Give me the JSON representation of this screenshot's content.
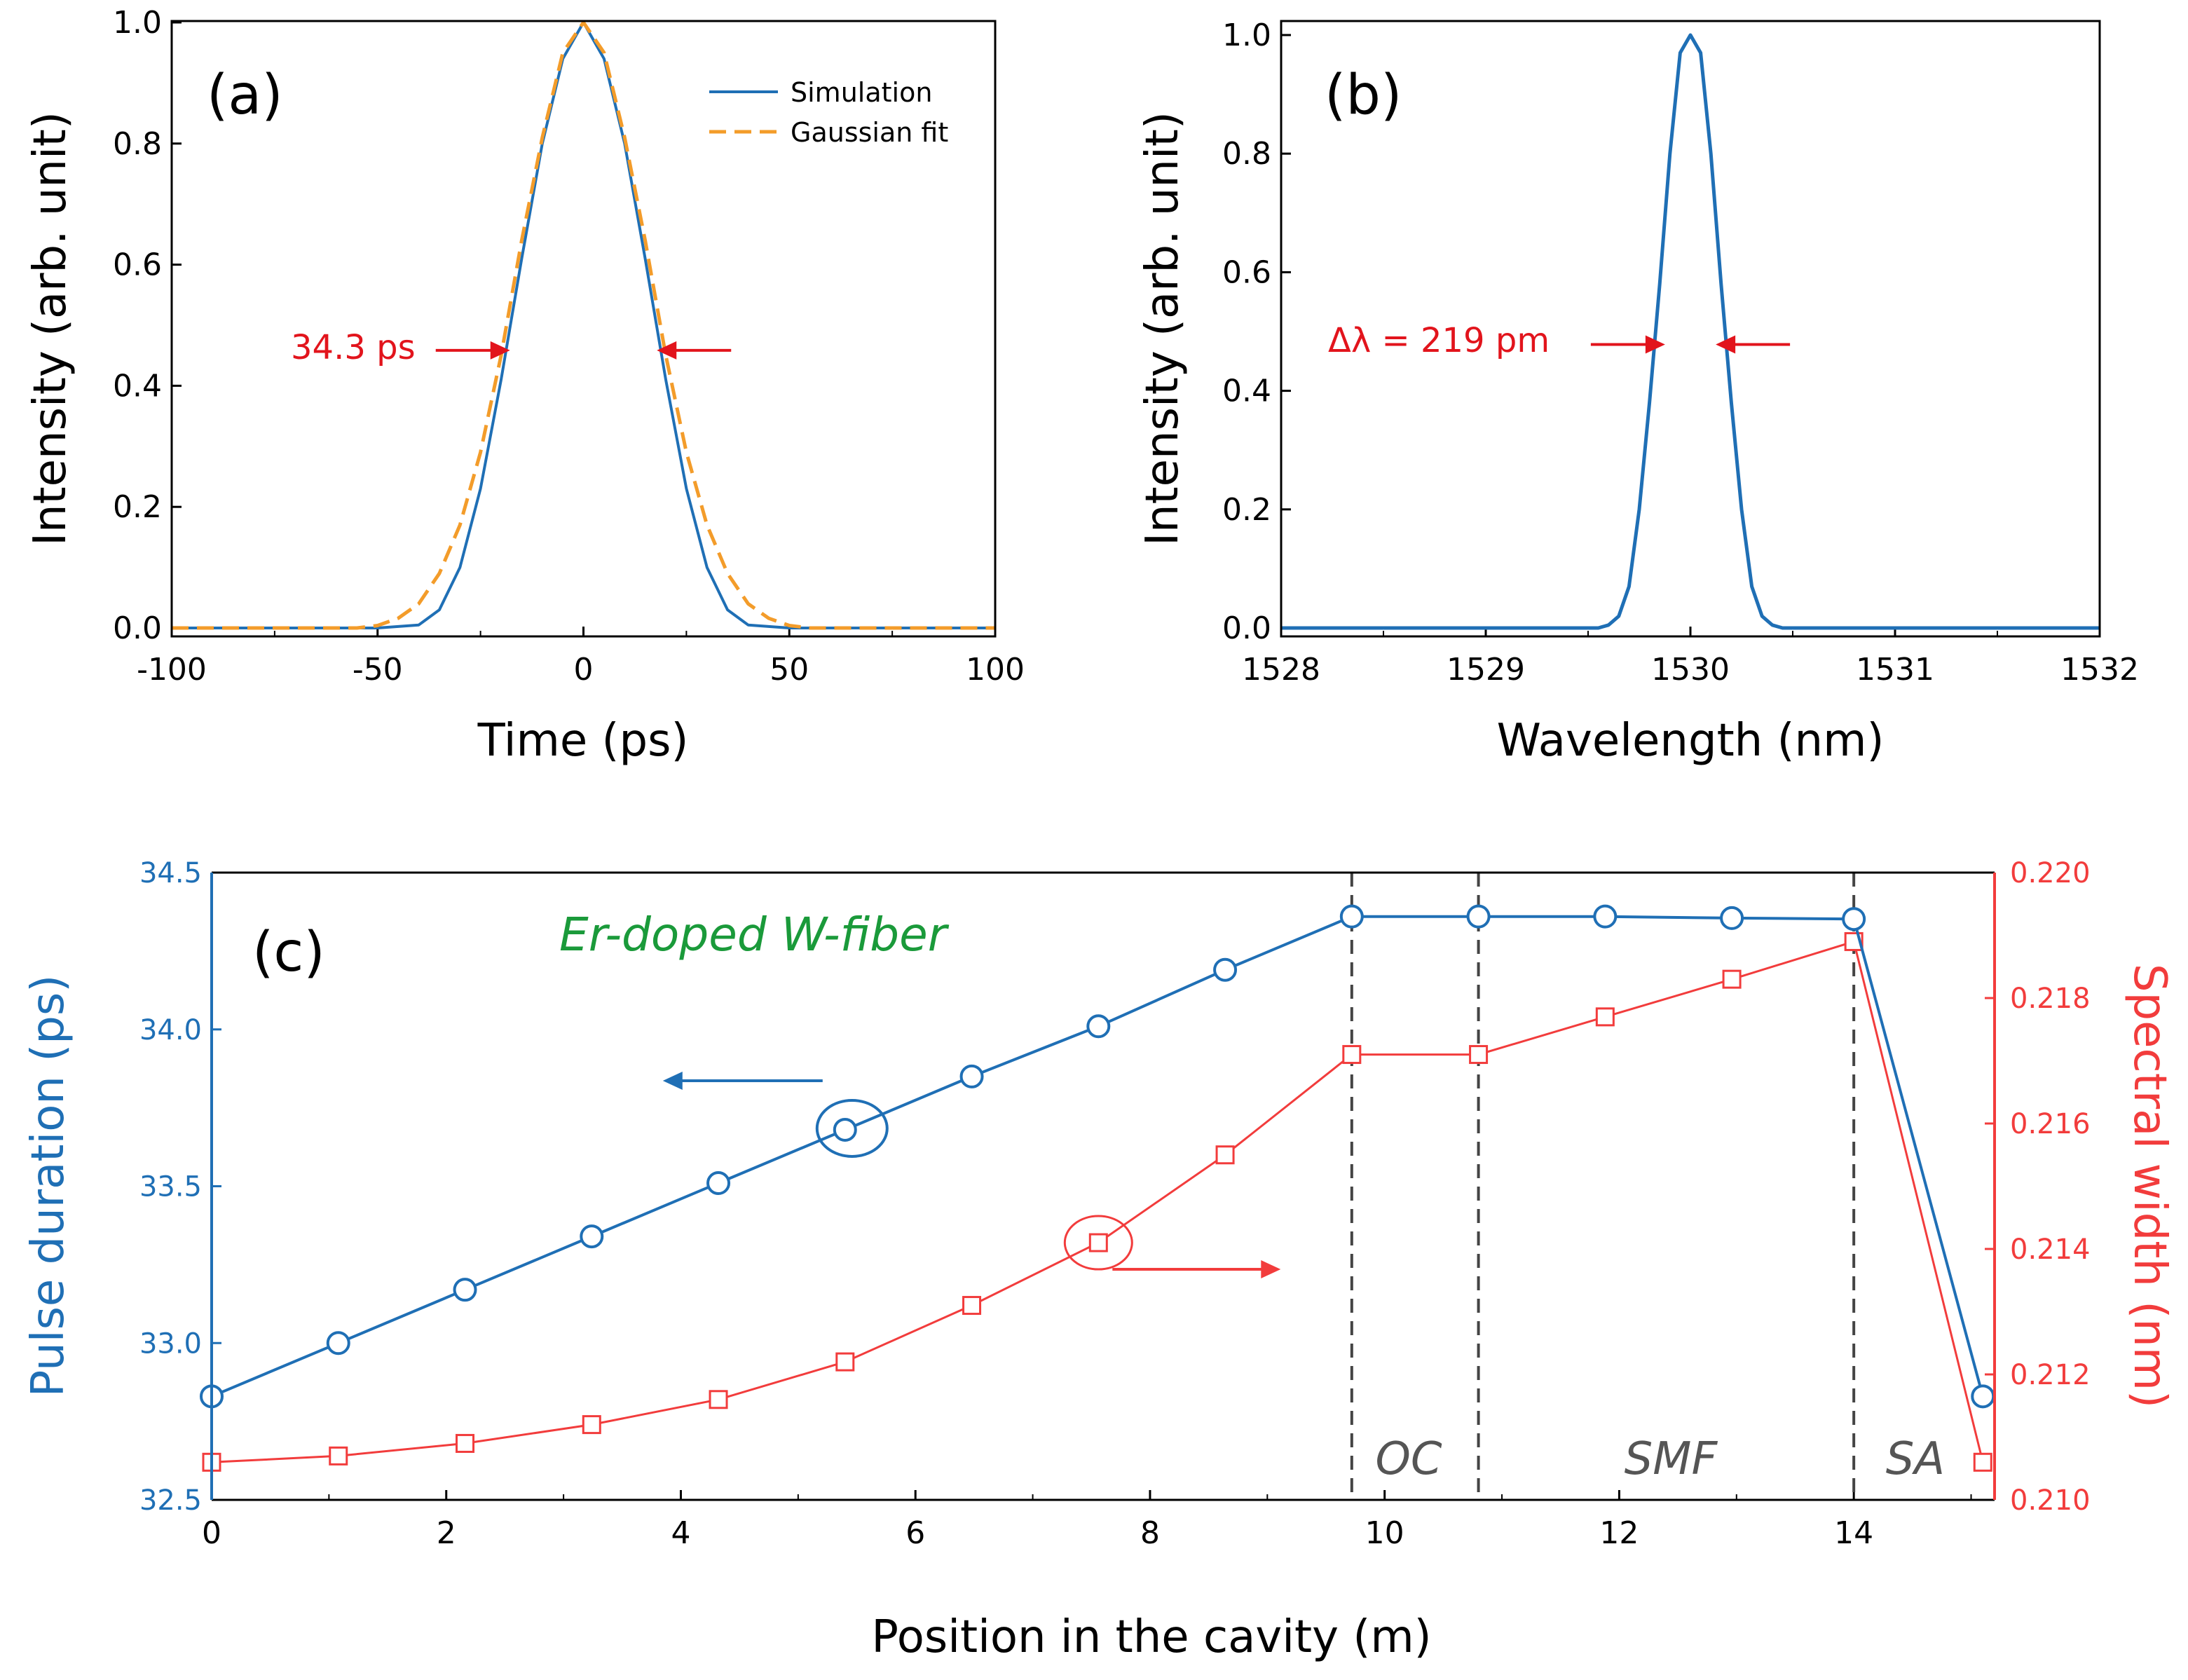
{
  "colors": {
    "simulation": "#1f6fb5",
    "gaussian_fit": "#f39c2a",
    "spectrum": "#1f6fb5",
    "duration": "#1f6fb5",
    "spectral_width": "#f23c3c",
    "annotation": "#e2141c",
    "fiber_label": "#1a9a3a",
    "region": "#555555"
  },
  "chart_data": [
    {
      "panel": "(a)",
      "type": "line",
      "xlabel": "Time (ps)",
      "ylabel": "Intensity (arb. unit)",
      "xlim": [
        -100,
        100
      ],
      "ylim": [
        0,
        1.0
      ],
      "xticks": [
        "-100",
        "-50",
        "0",
        "50",
        "100"
      ],
      "yticks": [
        "0.0",
        "0.2",
        "0.4",
        "0.6",
        "0.8",
        "1.0"
      ],
      "legend_position": "top-right",
      "series": [
        {
          "name": "Simulation",
          "style": "solid",
          "x": [
            -100,
            -50,
            -40,
            -35,
            -30,
            -25,
            -20,
            -15,
            -10,
            -5,
            0,
            5,
            10,
            15,
            20,
            25,
            30,
            35,
            40,
            50,
            100
          ],
          "y": [
            0,
            0,
            0.005,
            0.03,
            0.1,
            0.23,
            0.41,
            0.61,
            0.8,
            0.94,
            1.0,
            0.94,
            0.8,
            0.61,
            0.41,
            0.23,
            0.1,
            0.03,
            0.005,
            0,
            0
          ]
        },
        {
          "name": "Gaussian fit",
          "style": "dashed",
          "x": [
            -100,
            -55,
            -50,
            -45,
            -40,
            -35,
            -30,
            -25,
            -20,
            -15,
            -10,
            -5,
            0,
            5,
            10,
            15,
            20,
            25,
            30,
            35,
            40,
            45,
            50,
            55,
            100
          ],
          "y": [
            0,
            0,
            0.004,
            0.016,
            0.04,
            0.09,
            0.17,
            0.29,
            0.45,
            0.64,
            0.81,
            0.95,
            1.0,
            0.95,
            0.81,
            0.64,
            0.45,
            0.29,
            0.17,
            0.09,
            0.04,
            0.016,
            0.004,
            0,
            0
          ]
        }
      ],
      "annotation": {
        "text": "34.3 ps",
        "x_left": -17.15,
        "x_right": 17.15,
        "y": 0.47
      }
    },
    {
      "panel": "(b)",
      "type": "line",
      "xlabel": "Wavelength (nm)",
      "ylabel": "Intensity (arb. unit)",
      "xlim": [
        1528,
        1532
      ],
      "ylim": [
        0,
        1.0
      ],
      "xticks": [
        "1528",
        "1529",
        "1530",
        "1531",
        "1532"
      ],
      "yticks": [
        "0.0",
        "0.2",
        "0.4",
        "0.6",
        "0.8",
        "1.0"
      ],
      "series": [
        {
          "style": "solid",
          "x": [
            1528,
            1529.55,
            1529.6,
            1529.65,
            1529.7,
            1529.75,
            1529.8,
            1529.85,
            1529.9,
            1529.95,
            1530.0,
            1530.05,
            1530.1,
            1530.15,
            1530.2,
            1530.25,
            1530.3,
            1530.35,
            1530.4,
            1530.45,
            1532
          ],
          "y": [
            0,
            0,
            0.005,
            0.02,
            0.07,
            0.2,
            0.38,
            0.58,
            0.8,
            0.97,
            1.0,
            0.97,
            0.8,
            0.58,
            0.38,
            0.2,
            0.07,
            0.02,
            0.005,
            0,
            0
          ]
        }
      ],
      "annotation": {
        "text": "Δλ = 219 pm",
        "x_left": 1529.89,
        "x_right": 1530.11,
        "y": 0.49
      }
    },
    {
      "panel": "(c)",
      "type": "line",
      "xlabel": "Position in the cavity (m)",
      "ylabel_left": "Pulse duration (ps)",
      "ylabel_right": "Spectral width (nm)",
      "xlim": [
        0,
        15.2
      ],
      "ylim_left": [
        32.5,
        34.5
      ],
      "ylim_right": [
        0.21,
        0.22
      ],
      "xticks": [
        "0",
        "2",
        "4",
        "6",
        "8",
        "10",
        "12",
        "14"
      ],
      "yticks_left": [
        "32.5",
        "33.0",
        "33.5",
        "34.0",
        "34.5"
      ],
      "yticks_right": [
        "0.210",
        "0.212",
        "0.214",
        "0.216",
        "0.218",
        "0.220"
      ],
      "series": [
        {
          "marker": "circle",
          "axis": "left",
          "x": [
            0,
            1.08,
            2.16,
            3.24,
            4.32,
            5.4,
            6.48,
            7.56,
            8.64,
            9.72,
            10.8,
            11.88,
            12.96,
            14.0,
            15.1
          ],
          "y": [
            32.83,
            33.0,
            33.17,
            33.34,
            33.51,
            33.68,
            33.85,
            34.01,
            34.19,
            34.36,
            34.36,
            34.36,
            34.355,
            34.352,
            32.83
          ]
        },
        {
          "marker": "square",
          "axis": "right",
          "x": [
            0,
            1.08,
            2.16,
            3.24,
            4.32,
            5.4,
            6.48,
            7.56,
            8.64,
            9.72,
            10.8,
            11.88,
            12.96,
            14.0,
            15.1
          ],
          "y": [
            0.2106,
            0.2107,
            0.2109,
            0.2112,
            0.2116,
            0.2122,
            0.2131,
            0.2141,
            0.2155,
            0.2171,
            0.2171,
            0.2177,
            0.2183,
            0.2189,
            0.2106
          ]
        }
      ],
      "dividers_x": [
        9.72,
        10.8,
        14.0
      ],
      "regions": [
        "OC",
        "SMF",
        "SA"
      ],
      "fiber_label": "Er-doped W-fiber"
    }
  ]
}
